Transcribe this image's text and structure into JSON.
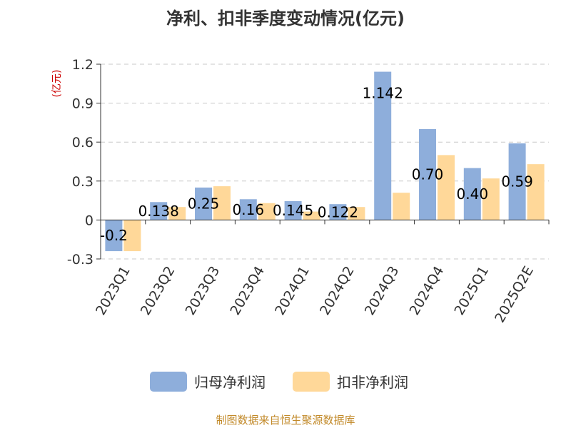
{
  "chart_data": {
    "type": "bar",
    "title": "净利、扣非季度变动情况(亿元)",
    "ylabel": "(亿元)",
    "categories": [
      "2023Q1",
      "2023Q2",
      "2023Q3",
      "2023Q4",
      "2024Q1",
      "2024Q2",
      "2024Q3",
      "2024Q4",
      "2025Q1",
      "2025Q2E"
    ],
    "series": [
      {
        "name": "归母净利润",
        "color": "#8eaedb",
        "values": [
          -0.24,
          0.138,
          0.25,
          0.16,
          0.145,
          0.122,
          1.142,
          0.7,
          0.4,
          0.59
        ]
      },
      {
        "name": "扣非净利润",
        "color": "#ffd899",
        "values": [
          -0.24,
          0.1,
          0.26,
          0.13,
          0.065,
          0.1,
          0.21,
          0.5,
          0.32,
          0.43
        ]
      }
    ],
    "data_labels": [
      "-0.2",
      "0.138",
      "0.25",
      "0.16",
      "0.145",
      "0.122",
      "1.142",
      "0.70",
      "0.40",
      "0.59"
    ],
    "yticks": [
      "1.2",
      "0.9",
      "0.6",
      "0.3",
      "0",
      "-0.3"
    ],
    "ylim": [
      -0.3,
      1.2
    ],
    "grid": true,
    "legend_position": "bottom"
  },
  "source": "制图数据来自恒生聚源数据库"
}
